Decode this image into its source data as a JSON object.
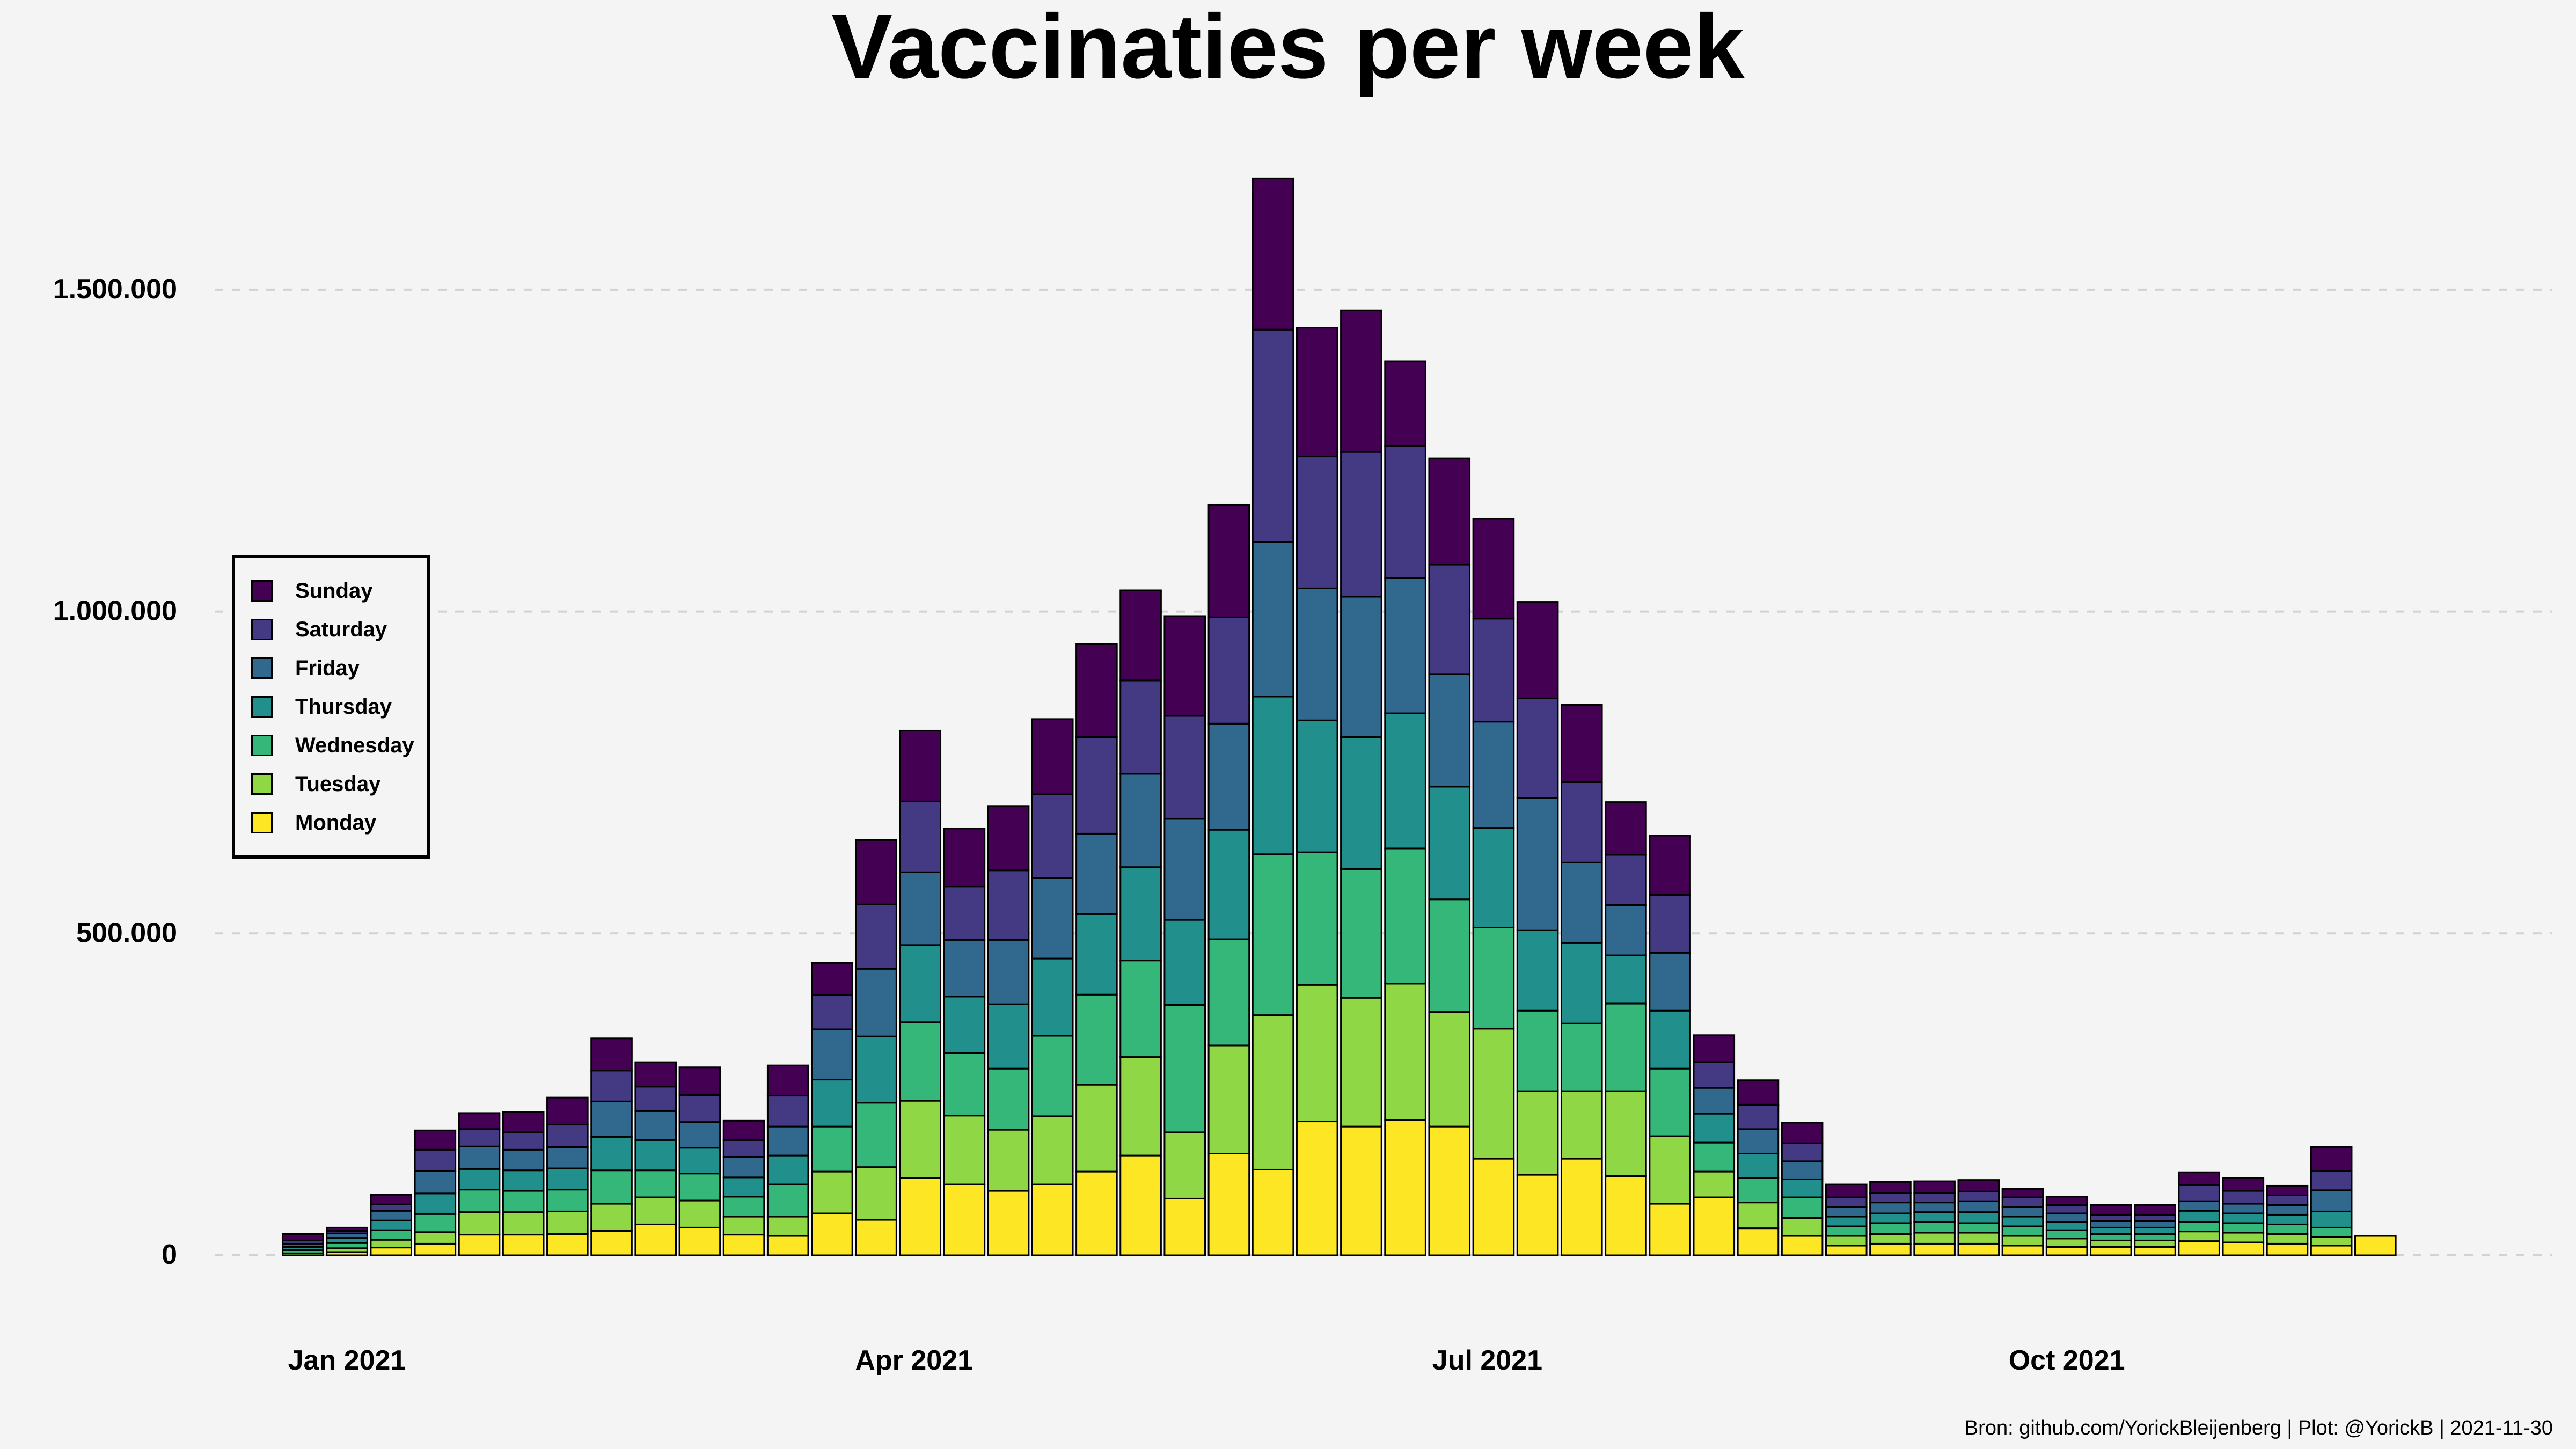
{
  "title": "Vaccinaties per week",
  "caption": "Bron: github.com/YorickBleijenberg | Plot: @YorickB  |  2021-11-30",
  "legend": [
    {
      "label": "Sunday",
      "color": "#440154"
    },
    {
      "label": "Saturday",
      "color": "#443a83"
    },
    {
      "label": "Friday",
      "color": "#31688e"
    },
    {
      "label": "Thursday",
      "color": "#21908d"
    },
    {
      "label": "Wednesday",
      "color": "#35b779"
    },
    {
      "label": "Tuesday",
      "color": "#8fd744"
    },
    {
      "label": "Monday",
      "color": "#fde725"
    }
  ],
  "chart_data": {
    "type": "bar",
    "stacked": true,
    "title": "Vaccinaties per week",
    "xlabel": "",
    "ylabel": "",
    "ylim": [
      0,
      1700000
    ],
    "yticks": [
      0,
      500000,
      1000000,
      1500000
    ],
    "ytick_labels": [
      "0",
      "500.000",
      "1.000.000",
      "1.500.000"
    ],
    "x_start_week": -1,
    "xlim_weeks": [
      -3,
      50
    ],
    "x_ticks": [
      {
        "label": "Jan 2021",
        "week": 0
      },
      {
        "label": "Apr 2021",
        "week": 12.86
      },
      {
        "label": "Jul 2021",
        "week": 25.86
      },
      {
        "label": "Oct 2021",
        "week": 39
      }
    ],
    "legend_position": "left",
    "grid": "horizontal-dashed",
    "series": [
      {
        "name": "Monday",
        "color": "#fde725",
        "values": [
          0,
          5000,
          12000,
          18000,
          32000,
          32000,
          33000,
          38000,
          48000,
          43000,
          32000,
          30000,
          65000,
          55000,
          120000,
          110000,
          100000,
          110000,
          130000,
          155000,
          88000,
          158000,
          133000,
          208000,
          200000,
          210000,
          200000,
          150000,
          125000,
          150000,
          123000,
          80000,
          90000,
          42000,
          30000,
          15000,
          18000,
          18000,
          18000,
          15000,
          13000,
          13000,
          13000,
          22000,
          20000,
          18000,
          15000,
          30000
        ]
      },
      {
        "name": "Tuesday",
        "color": "#8fd744",
        "values": [
          3000,
          6000,
          12000,
          18000,
          35000,
          35000,
          35000,
          42000,
          42000,
          42000,
          28000,
          30000,
          65000,
          82000,
          120000,
          107000,
          95000,
          106000,
          135000,
          153000,
          103000,
          168000,
          240000,
          212000,
          200000,
          212000,
          178000,
          202000,
          130000,
          105000,
          132000,
          105000,
          40000,
          40000,
          28000,
          15000,
          15000,
          17000,
          17000,
          15000,
          13000,
          10000,
          10000,
          15000,
          15000,
          15000,
          13000,
          0
        ]
      },
      {
        "name": "Wednesday",
        "color": "#35b779",
        "values": [
          5000,
          8000,
          15000,
          28000,
          35000,
          33000,
          34000,
          52000,
          42000,
          42000,
          31000,
          50000,
          70000,
          100000,
          122000,
          97000,
          95000,
          125000,
          140000,
          150000,
          198000,
          165000,
          250000,
          206000,
          200000,
          210000,
          175000,
          157000,
          125000,
          105000,
          136000,
          105000,
          45000,
          38000,
          32000,
          15000,
          17000,
          17000,
          15000,
          15000,
          13000,
          10000,
          10000,
          15000,
          15000,
          15000,
          15000,
          0
        ]
      },
      {
        "name": "Thursday",
        "color": "#21908d",
        "values": [
          5000,
          8000,
          15000,
          32000,
          32000,
          32000,
          33000,
          52000,
          47000,
          40000,
          30000,
          45000,
          73000,
          103000,
          120000,
          88000,
          100000,
          120000,
          125000,
          145000,
          132000,
          170000,
          245000,
          205000,
          205000,
          210000,
          175000,
          155000,
          125000,
          125000,
          75000,
          90000,
          45000,
          38000,
          28000,
          15000,
          15000,
          15000,
          17000,
          15000,
          13000,
          10000,
          10000,
          17000,
          15000,
          15000,
          25000,
          0
        ]
      },
      {
        "name": "Friday",
        "color": "#31688e",
        "values": [
          5000,
          7000,
          15000,
          35000,
          35000,
          32000,
          33000,
          55000,
          45000,
          40000,
          32000,
          45000,
          78000,
          105000,
          113000,
          88000,
          100000,
          125000,
          125000,
          145000,
          157000,
          165000,
          240000,
          205000,
          218000,
          210000,
          175000,
          165000,
          205000,
          125000,
          78000,
          90000,
          40000,
          38000,
          28000,
          15000,
          17000,
          15000,
          17000,
          15000,
          13000,
          10000,
          10000,
          15000,
          15000,
          15000,
          33000,
          0
        ]
      },
      {
        "name": "Saturday",
        "color": "#443a83",
        "values": [
          5000,
          4000,
          10000,
          33000,
          27000,
          27000,
          35000,
          48000,
          38000,
          42000,
          26000,
          48000,
          53000,
          100000,
          110000,
          83000,
          108000,
          130000,
          150000,
          145000,
          160000,
          165000,
          330000,
          205000,
          225000,
          205000,
          170000,
          160000,
          155000,
          125000,
          78000,
          90000,
          40000,
          38000,
          28000,
          15000,
          15000,
          15000,
          15000,
          15000,
          13000,
          10000,
          10000,
          25000,
          20000,
          15000,
          30000,
          0
        ]
      },
      {
        "name": "Sunday",
        "color": "#440154",
        "values": [
          10000,
          5000,
          15000,
          30000,
          25000,
          32000,
          42000,
          50000,
          38000,
          43000,
          30000,
          47000,
          50000,
          100000,
          110000,
          90000,
          100000,
          117000,
          145000,
          140000,
          155000,
          175000,
          235000,
          200000,
          220000,
          132000,
          165000,
          155000,
          150000,
          120000,
          82000,
          92000,
          42000,
          38000,
          32000,
          20000,
          17000,
          18000,
          18000,
          13000,
          13000,
          15000,
          15000,
          20000,
          20000,
          15000,
          37000,
          0
        ]
      }
    ]
  }
}
